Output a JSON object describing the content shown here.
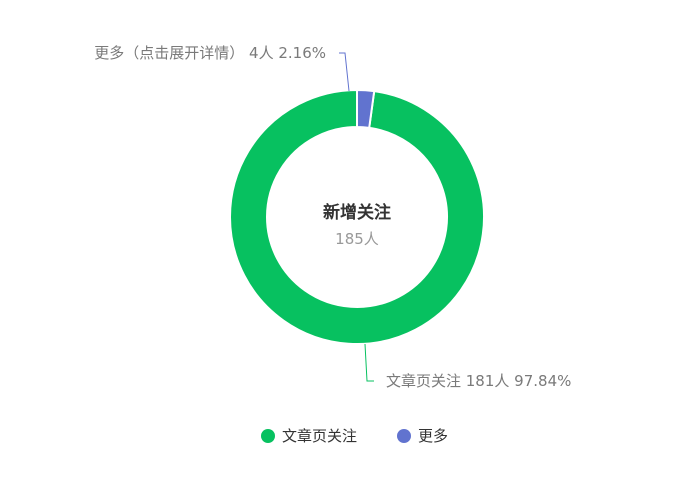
{
  "chart_data": {
    "type": "pie",
    "donut": true,
    "center_title": "新增关注",
    "center_subtitle": "185人",
    "series": [
      {
        "name": "文章页关注",
        "value": 181,
        "percent": "97.84%",
        "unit": "人",
        "color": "#07c160",
        "label": "文章页关注 181人 97.84%"
      },
      {
        "name": "更多",
        "value": 4,
        "percent": "2.16%",
        "unit": "人",
        "color": "#6173cf",
        "label": "更多（点击展开详情） 4人 2.16%"
      }
    ],
    "legend": {
      "position": "bottom",
      "items": [
        "文章页关注",
        "更多"
      ]
    }
  }
}
